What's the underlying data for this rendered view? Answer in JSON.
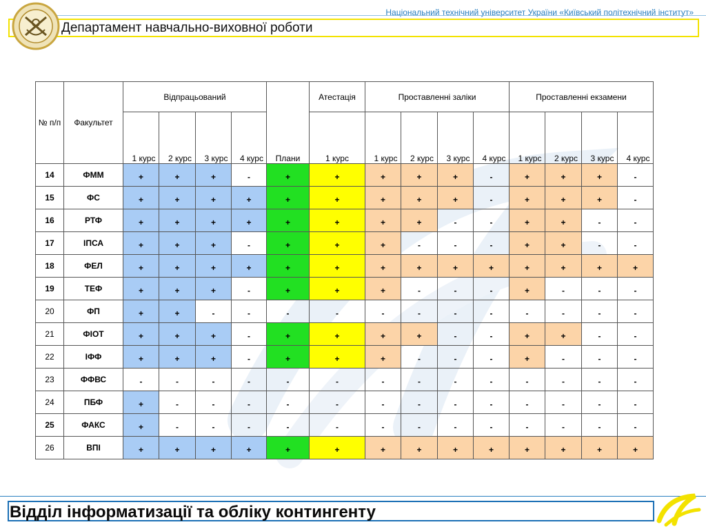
{
  "header": {
    "university": "Національний технічний університет України «Київський політехнічний інститут»",
    "department": "Департамент навчально-виховної роботи"
  },
  "table": {
    "col_no": "№ п/п",
    "col_faculty": "Факультет",
    "group_worked": "Відпрацьований",
    "group_certification": "Атестація",
    "group_credits": "Проставленні заліки",
    "group_exams": "Проставленні екзамени",
    "col_plans": "Плани",
    "course_labels": [
      "1 курс",
      "2 курс",
      "3 курс",
      "4 курс"
    ],
    "certification_course": "1 курс",
    "rows": [
      {
        "no": "14",
        "faculty": "ФММ",
        "bold": true,
        "cells": [
          "+",
          "+",
          "+",
          "-",
          "+",
          "+",
          "+",
          "+",
          "+",
          "-",
          "+",
          "+",
          "+",
          "-"
        ],
        "colors": [
          "b",
          "b",
          "b",
          "w",
          "g",
          "y",
          "o",
          "o",
          "o",
          "w",
          "o",
          "o",
          "o",
          "w"
        ]
      },
      {
        "no": "15",
        "faculty": "ФС",
        "bold": true,
        "cells": [
          "+",
          "+",
          "+",
          "+",
          "+",
          "+",
          "+",
          "+",
          "+",
          "-",
          "+",
          "+",
          "+",
          "-"
        ],
        "colors": [
          "b",
          "b",
          "b",
          "b",
          "g",
          "y",
          "o",
          "o",
          "o",
          "w",
          "o",
          "o",
          "o",
          "w"
        ]
      },
      {
        "no": "16",
        "faculty": "РТФ",
        "bold": true,
        "cells": [
          "+",
          "+",
          "+",
          "+",
          "+",
          "+",
          "+",
          "+",
          "-",
          "-",
          "+",
          "+",
          "-",
          "-"
        ],
        "colors": [
          "b",
          "b",
          "b",
          "b",
          "g",
          "y",
          "o",
          "o",
          "w",
          "w",
          "o",
          "o",
          "w",
          "w"
        ]
      },
      {
        "no": "17",
        "faculty": "ІПСА",
        "bold": true,
        "cells": [
          "+",
          "+",
          "+",
          "-",
          "+",
          "+",
          "+",
          "-",
          "-",
          "-",
          "+",
          "+",
          "-",
          "-"
        ],
        "colors": [
          "b",
          "b",
          "b",
          "w",
          "g",
          "y",
          "o",
          "w",
          "w",
          "w",
          "o",
          "o",
          "w",
          "w"
        ]
      },
      {
        "no": "18",
        "faculty": "ФЕЛ",
        "bold": true,
        "cells": [
          "+",
          "+",
          "+",
          "+",
          "+",
          "+",
          "+",
          "+",
          "+",
          "+",
          "+",
          "+",
          "+",
          "+"
        ],
        "colors": [
          "b",
          "b",
          "b",
          "b",
          "g",
          "y",
          "o",
          "o",
          "o",
          "o",
          "o",
          "o",
          "o",
          "o"
        ]
      },
      {
        "no": "19",
        "faculty": "ТЕФ",
        "bold": true,
        "cells": [
          "+",
          "+",
          "+",
          "-",
          "+",
          "+",
          "+",
          "-",
          "-",
          "-",
          "+",
          "-",
          "-",
          "-"
        ],
        "colors": [
          "b",
          "b",
          "b",
          "w",
          "g",
          "y",
          "o",
          "w",
          "w",
          "w",
          "o",
          "w",
          "w",
          "w"
        ]
      },
      {
        "no": "20",
        "faculty": "ФП",
        "bold": false,
        "cells": [
          "+",
          "+",
          "-",
          "-",
          "-",
          "-",
          "-",
          "-",
          "-",
          "-",
          "-",
          "-",
          "-",
          "-"
        ],
        "colors": [
          "b",
          "b",
          "w",
          "w",
          "w",
          "w",
          "w",
          "w",
          "w",
          "w",
          "w",
          "w",
          "w",
          "w"
        ]
      },
      {
        "no": "21",
        "faculty": "ФІОТ",
        "bold": false,
        "cells": [
          "+",
          "+",
          "+",
          "-",
          "+",
          "+",
          "+",
          "+",
          "-",
          "-",
          "+",
          "+",
          "-",
          "-"
        ],
        "colors": [
          "b",
          "b",
          "b",
          "w",
          "g",
          "y",
          "o",
          "o",
          "w",
          "w",
          "o",
          "o",
          "w",
          "w"
        ]
      },
      {
        "no": "22",
        "faculty": "ІФФ",
        "bold": false,
        "cells": [
          "+",
          "+",
          "+",
          "-",
          "+",
          "+",
          "+",
          "-",
          "-",
          "-",
          "+",
          "-",
          "-",
          "-"
        ],
        "colors": [
          "b",
          "b",
          "b",
          "w",
          "g",
          "y",
          "o",
          "w",
          "w",
          "w",
          "o",
          "w",
          "w",
          "w"
        ]
      },
      {
        "no": "23",
        "faculty": "ФФВС",
        "bold": false,
        "cells": [
          "-",
          "-",
          "-",
          "-",
          "-",
          "-",
          "-",
          "-",
          "-",
          "-",
          "-",
          "-",
          "-",
          "-"
        ],
        "colors": [
          "w",
          "w",
          "w",
          "w",
          "w",
          "w",
          "w",
          "w",
          "w",
          "w",
          "w",
          "w",
          "w",
          "w"
        ]
      },
      {
        "no": "24",
        "faculty": "ПБФ",
        "bold": false,
        "cells": [
          "+",
          "-",
          "-",
          "-",
          "-",
          "-",
          "-",
          "-",
          "-",
          "-",
          "-",
          "-",
          "-",
          "-"
        ],
        "colors": [
          "b",
          "w",
          "w",
          "w",
          "w",
          "w",
          "w",
          "w",
          "w",
          "w",
          "w",
          "w",
          "w",
          "w"
        ]
      },
      {
        "no": "25",
        "faculty": "ФАКС",
        "bold": true,
        "cells": [
          "+",
          "-",
          "-",
          "-",
          "-",
          "-",
          "-",
          "-",
          "-",
          "-",
          "-",
          "-",
          "-",
          "-"
        ],
        "colors": [
          "b",
          "w",
          "w",
          "w",
          "w",
          "w",
          "w",
          "w",
          "w",
          "w",
          "w",
          "w",
          "w",
          "w"
        ]
      },
      {
        "no": "26",
        "faculty": "ВПІ",
        "bold": false,
        "cells": [
          "+",
          "+",
          "+",
          "+",
          "+",
          "+",
          "+",
          "+",
          "+",
          "+",
          "+",
          "+",
          "+",
          "+"
        ],
        "colors": [
          "b",
          "b",
          "b",
          "b",
          "g",
          "y",
          "o",
          "o",
          "o",
          "o",
          "o",
          "o",
          "o",
          "o"
        ]
      }
    ]
  },
  "footer": {
    "title": "Відділ інформатизації та обліку контингенту"
  },
  "colors": {
    "worked_blue": "#a9ccf5",
    "plans_green": "#22e022",
    "cert_yellow": "#ffff00",
    "marks_orange": "#fcd4a8",
    "header_yellow": "#f3e200",
    "footer_blue": "#1a6fb5"
  }
}
